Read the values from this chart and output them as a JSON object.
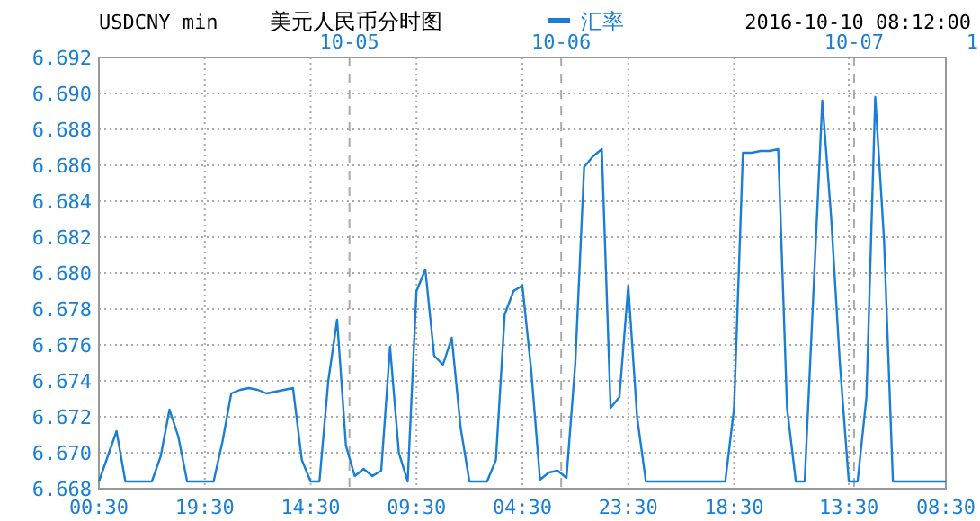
{
  "chart_data": {
    "type": "line",
    "title": "美元人民币分时图",
    "subtitle": "USDCNY min",
    "annotations": [
      "2016-10-10 08:12:00",
      "1",
      "10-05",
      "10-06",
      "10-07"
    ],
    "categories": [
      "00:30",
      null,
      null,
      null,
      null,
      null,
      null,
      null,
      null,
      null,
      null,
      null,
      "19:30",
      null,
      null,
      null,
      null,
      null,
      null,
      null,
      null,
      null,
      null,
      null,
      "14:30",
      null,
      null,
      null,
      null,
      null,
      null,
      null,
      null,
      null,
      null,
      null,
      "09:30",
      null,
      null,
      null,
      null,
      null,
      null,
      null,
      null,
      null,
      null,
      null,
      "04:30",
      null,
      null,
      null,
      null,
      null,
      null,
      null,
      null,
      null,
      null,
      null,
      "23:30",
      null,
      null,
      null,
      null,
      null,
      null,
      null,
      null,
      null,
      null,
      null,
      "18:30",
      null,
      null,
      null,
      null,
      null,
      null,
      null,
      null,
      null,
      null,
      null,
      null,
      "13:30",
      null,
      null,
      null,
      null,
      null,
      null,
      null,
      null,
      null,
      null,
      "08:30"
    ],
    "series": [
      {
        "name": "汇率",
        "color": "#1a7fd4",
        "values": [
          6.6684,
          6.6698,
          6.6712,
          6.6684,
          6.6684,
          6.6684,
          6.6684,
          6.6698,
          6.6724,
          6.6709,
          6.6684,
          6.6684,
          6.6684,
          6.6684,
          6.6706,
          6.6733,
          6.6735,
          6.6736,
          6.6735,
          6.6733,
          6.6734,
          6.6735,
          6.6736,
          6.6696,
          6.6684,
          6.6684,
          6.674,
          6.6774,
          6.6704,
          6.6687,
          6.6691,
          6.6687,
          6.669,
          6.6759,
          6.67,
          6.6684,
          6.679,
          6.6802,
          6.6754,
          6.6749,
          6.6764,
          6.6714,
          6.6684,
          6.6684,
          6.6684,
          6.6696,
          6.6777,
          6.679,
          6.6793,
          6.6746,
          6.6685,
          6.6689,
          6.669,
          6.6686,
          6.675,
          6.6859,
          6.6865,
          6.6869,
          6.6725,
          6.6731,
          6.6793,
          6.672,
          6.6684,
          6.6684,
          6.6684,
          6.6684,
          6.6684,
          6.6684,
          6.6684,
          6.6684,
          6.6684,
          6.6684,
          6.6725,
          6.6867,
          6.6867,
          6.6868,
          6.6868,
          6.6869,
          6.6725,
          6.6684,
          6.6684,
          6.679,
          6.6896,
          6.6831,
          6.6749,
          6.6684,
          6.6684,
          6.6731,
          6.6898,
          6.6818,
          6.6684,
          6.6684,
          6.6684,
          6.6684,
          6.6684,
          6.6684,
          6.6684
        ]
      }
    ],
    "ylim": [
      6.668,
      6.692
    ],
    "yticks": [
      {
        "value": 6.668,
        "label": "6.668"
      },
      {
        "value": 6.67,
        "label": "6.670"
      },
      {
        "value": 6.672,
        "label": "6.672"
      },
      {
        "value": 6.674,
        "label": "6.674"
      },
      {
        "value": 6.676,
        "label": "6.676"
      },
      {
        "value": 6.678,
        "label": "6.678"
      },
      {
        "value": 6.68,
        "label": "6.680"
      },
      {
        "value": 6.682,
        "label": "6.682"
      },
      {
        "value": 6.684,
        "label": "6.684"
      },
      {
        "value": 6.686,
        "label": "6.686"
      },
      {
        "value": 6.688,
        "label": "6.688"
      },
      {
        "value": 6.69,
        "label": "6.690"
      },
      {
        "value": 6.692,
        "label": "6.692"
      }
    ],
    "grid": true,
    "legend": "top",
    "marker": "none",
    "line_style": "solid"
  }
}
